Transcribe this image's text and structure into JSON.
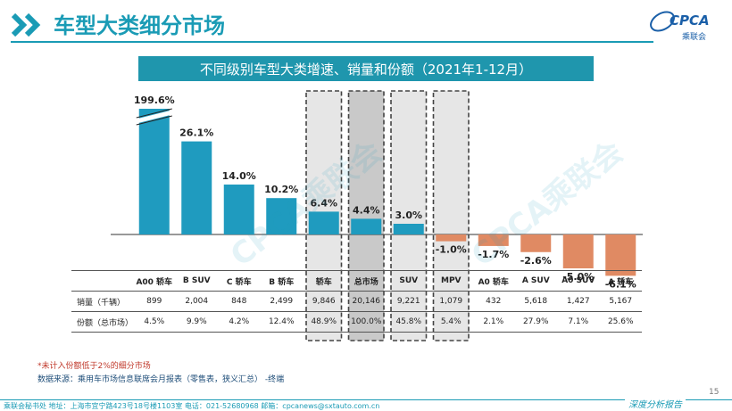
{
  "header": {
    "title": "车型大类细分市场",
    "logo_text": "CPCA",
    "logo_sub": "乘联会"
  },
  "banner": "不同级别车型大类增速、销量和份额（2021年1-12月）",
  "chart_data": {
    "type": "bar",
    "categories": [
      "A00 轿车",
      "B SUV",
      "C 轿车",
      "B 轿车",
      "轿车",
      "总市场",
      "SUV",
      "MPV",
      "A0 轿车",
      "A SUV",
      "A0 SUV",
      "A 轿车"
    ],
    "values": [
      199.6,
      26.1,
      14.0,
      10.2,
      6.4,
      4.4,
      3.0,
      -1.0,
      -1.7,
      -2.6,
      -5.0,
      -6.1
    ],
    "value_labels": [
      "199.6%",
      "26.1%",
      "14.0%",
      "10.2%",
      "6.4%",
      "4.4%",
      "3.0%",
      "-1.0%",
      "-1.7%",
      "-2.6%",
      "-5.0%",
      "-6.1%"
    ],
    "axis_break_value": 30,
    "ylim": [
      -8,
      30
    ],
    "highlighted": [
      "轿车",
      "总市场",
      "SUV",
      "MPV"
    ],
    "colors": {
      "positive": "#1f9bbf",
      "negative": "#e08a63",
      "highlight_fill": "#e6e6e6",
      "total_fill": "#c9c9c9",
      "frame": "#444444"
    }
  },
  "table": {
    "rows": [
      {
        "label": "销量（千辆）",
        "values": [
          "899",
          "2,004",
          "848",
          "2,499",
          "9,846",
          "20,146",
          "9,221",
          "1,079",
          "432",
          "5,618",
          "1,427",
          "5,167"
        ]
      },
      {
        "label": "份额（总市场）",
        "values": [
          "4.5%",
          "9.9%",
          "4.2%",
          "12.4%",
          "48.9%",
          "100.0%",
          "45.8%",
          "5.4%",
          "2.1%",
          "27.9%",
          "7.1%",
          "25.6%"
        ]
      }
    ]
  },
  "notes": {
    "note1": "*未计入份额低于2%的细分市场",
    "note2": "数据来源：乘用车市场信息联席会月报表（零售表，狭义汇总）   -终端"
  },
  "watermark": "CPCA乘联会",
  "page_number": "15",
  "footer": "乘联会秘书处   地址：上海市宜宁路423号18号楼1103室   电话：021-52680968   邮箱：cpcanews@sxtauto.com.cn",
  "report_tag": "深度分析报告"
}
